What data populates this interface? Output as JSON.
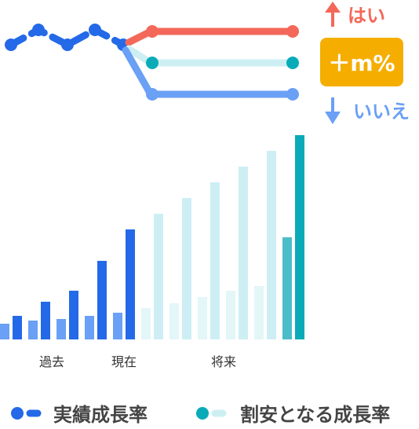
{
  "labels": {
    "yes": "はい",
    "no": "いいえ",
    "badge": "＋m%"
  },
  "x_axis": {
    "past": "過去",
    "present": "現在",
    "future": "将来"
  },
  "legend": {
    "actual": "実績成長率",
    "hurdle": "割安となる成長率"
  },
  "colors": {
    "actual_blue": "#2469e8",
    "actual_light": "#6aa0f5",
    "future_light": "#cdeff4",
    "future_lighter": "#e3f6f8",
    "teal_mid": "#4bbdc8",
    "teal": "#0aabb8",
    "red": "#f4685a",
    "orange": "#f5ae00"
  },
  "chart_data": {
    "type": "bar",
    "groups": [
      {
        "period": "past",
        "light": 1,
        "dark": 1.5
      },
      {
        "period": "past",
        "light": 1.2,
        "dark": 2.4
      },
      {
        "period": "past",
        "light": 1.3,
        "dark": 3.1
      },
      {
        "period": "present",
        "light": 1.5,
        "dark": 5.0
      },
      {
        "period": "present",
        "light": 1.7,
        "dark": 7.0
      },
      {
        "period": "future",
        "light": 2.0,
        "dark": 8.0
      },
      {
        "period": "future",
        "light": 2.3,
        "dark": 9.0
      },
      {
        "period": "future",
        "light": 2.7,
        "dark": 10.0
      },
      {
        "period": "future",
        "light": 3.1,
        "dark": 11.0
      },
      {
        "period": "future",
        "light": 3.4,
        "dark": 12.0
      },
      {
        "period": "future",
        "light": 6.5,
        "dark": 13.0
      }
    ]
  }
}
